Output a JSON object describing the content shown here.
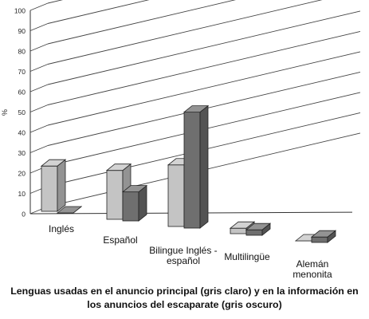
{
  "chart_data": {
    "type": "bar",
    "subtype": "3d-clustered-column",
    "categories": [
      "Inglés",
      "Español",
      "Bilingue Inglés - español",
      "Multilingüe",
      "Alemán menonita"
    ],
    "category_lines": [
      [
        "Inglés"
      ],
      [
        "Español"
      ],
      [
        "Bilingue Inglés -",
        "español"
      ],
      [
        "Multilingüe"
      ],
      [
        "Alemán",
        "menonita"
      ]
    ],
    "series": [
      {
        "key": "light",
        "values": [
          25,
          27,
          34,
          3,
          0
        ],
        "color": "#c4c4c4"
      },
      {
        "key": "dark",
        "values": [
          0,
          16,
          64,
          3,
          3
        ],
        "color": "#6f6f6f"
      }
    ],
    "ylabel": "%",
    "ylim": [
      0,
      100
    ],
    "yticks": [
      0,
      10,
      20,
      30,
      40,
      50,
      60,
      70,
      80,
      90,
      100
    ],
    "grid": true
  },
  "caption": {
    "line1": "Lenguas usadas en el anuncio principal (gris claro) y en la información en",
    "line2": "los anuncios del escaparate (gris oscuro)"
  }
}
